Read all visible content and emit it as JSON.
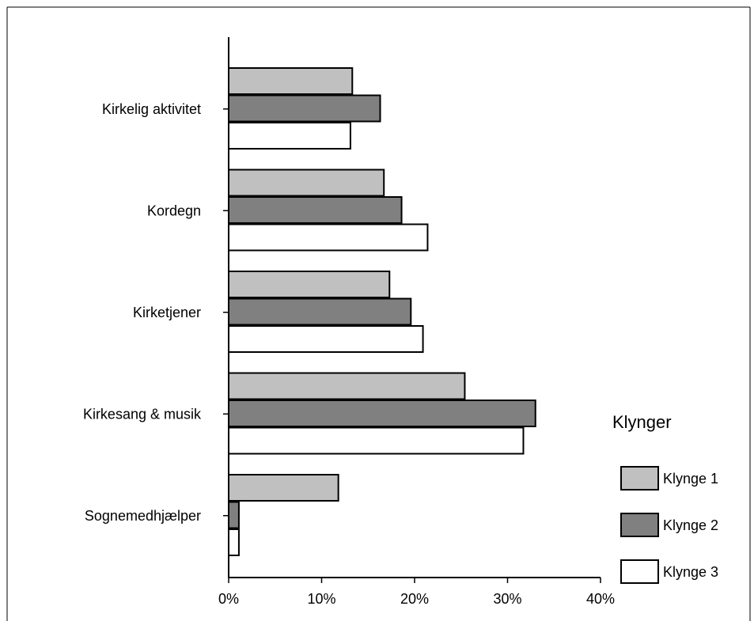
{
  "colors": {
    "klynge1": "#c0c0c0",
    "klynge2": "#808080",
    "klynge3": "#ffffff",
    "outline": "#000000"
  },
  "chart_data": {
    "type": "bar",
    "orientation": "horizontal",
    "title": "",
    "xlabel": "",
    "ylabel": "",
    "categories": [
      "Kirkelig aktivitet",
      "Kordegn",
      "Kirketjener",
      "Kirkesang & musik",
      "Sognemedhjælper"
    ],
    "series": [
      {
        "name": "Klynge 1",
        "values": [
          13.3,
          16.7,
          17.3,
          25.4,
          11.8
        ]
      },
      {
        "name": "Klynge 2",
        "values": [
          16.3,
          18.6,
          19.6,
          33.0,
          1.1
        ]
      },
      {
        "name": "Klynge 3",
        "values": [
          13.1,
          21.4,
          20.9,
          31.7,
          1.1
        ]
      }
    ],
    "xlim": [
      0,
      40
    ],
    "x_ticks": [
      "0%",
      "10%",
      "20%",
      "30%",
      "40%"
    ],
    "x_tick_values": [
      0,
      10,
      20,
      30,
      40
    ],
    "grid": false,
    "legend": {
      "title": "Klynger",
      "position": "right"
    }
  }
}
